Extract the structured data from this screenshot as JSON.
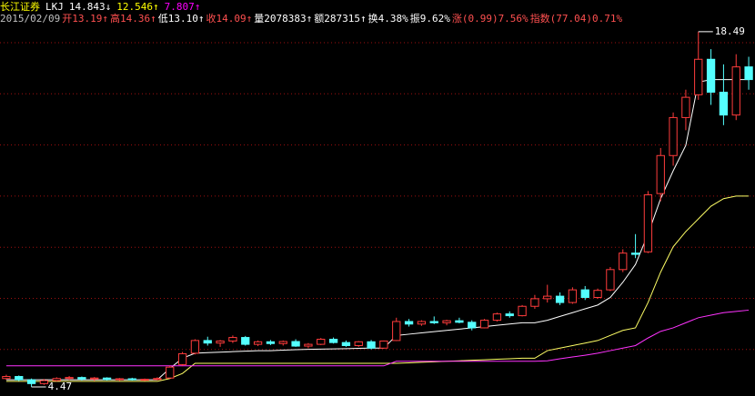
{
  "chart_data": {
    "type": "candlestick",
    "header": {
      "line1": [
        {
          "text": "长江证券",
          "color": "#ffff00"
        },
        {
          "text": "LKJ",
          "color": "#ffffff"
        },
        {
          "text": "14.843↓",
          "color": "#ffffff"
        },
        {
          "text": "12.546↑",
          "color": "#ffff00"
        },
        {
          "text": "7.807↑",
          "color": "#ff00ff"
        }
      ],
      "line2": [
        {
          "text": "2015/02/09",
          "color": "#c0c0c0"
        },
        {
          "text": "开13.19↑",
          "color": "#ff5050"
        },
        {
          "text": "高14.36↑",
          "color": "#ff5050"
        },
        {
          "text": "低13.10↑",
          "color": "#ffffff"
        },
        {
          "text": "收14.09↑",
          "color": "#ff5050"
        },
        {
          "text": "量2078383↑",
          "color": "#ffffff"
        },
        {
          "text": "额287315↑",
          "color": "#ffffff"
        },
        {
          "text": "换4.38%",
          "color": "#ffffff"
        },
        {
          "text": "振9.62%",
          "color": "#ffffff"
        },
        {
          "text": "涨(0.99)7.56%",
          "color": "#ff5050"
        },
        {
          "text": "指数(77.04)0.71%",
          "color": "#ff5050"
        }
      ]
    },
    "ylim": [
      4.11,
      19.74
    ],
    "up_color": "#ff3c3c",
    "down_color": "#54ffff",
    "grid_color": "#a01010",
    "max_label": 18.49,
    "min_label": 4.47,
    "candles": [
      [
        4.8,
        4.95,
        4.75,
        4.88
      ],
      [
        4.88,
        4.92,
        4.7,
        4.75
      ],
      [
        4.75,
        4.8,
        4.47,
        4.6
      ],
      [
        4.6,
        4.78,
        4.55,
        4.72
      ],
      [
        4.72,
        4.85,
        4.68,
        4.8
      ],
      [
        4.8,
        4.9,
        4.74,
        4.84
      ],
      [
        4.84,
        4.88,
        4.72,
        4.78
      ],
      [
        4.78,
        4.86,
        4.7,
        4.82
      ],
      [
        4.82,
        4.85,
        4.72,
        4.76
      ],
      [
        4.76,
        4.82,
        4.7,
        4.79
      ],
      [
        4.79,
        4.83,
        4.72,
        4.75
      ],
      [
        4.75,
        4.8,
        4.7,
        4.77
      ],
      [
        4.77,
        4.85,
        4.73,
        4.8
      ],
      [
        4.82,
        5.3,
        4.8,
        5.25
      ],
      [
        5.35,
        5.85,
        5.3,
        5.78
      ],
      [
        5.8,
        6.35,
        5.75,
        6.3
      ],
      [
        6.3,
        6.45,
        6.1,
        6.2
      ],
      [
        6.2,
        6.32,
        6.05,
        6.28
      ],
      [
        6.28,
        6.5,
        6.2,
        6.42
      ],
      [
        6.42,
        6.48,
        6.1,
        6.15
      ],
      [
        6.15,
        6.3,
        6.08,
        6.25
      ],
      [
        6.25,
        6.32,
        6.12,
        6.18
      ],
      [
        6.18,
        6.3,
        6.1,
        6.26
      ],
      [
        6.26,
        6.35,
        6.05,
        6.08
      ],
      [
        6.08,
        6.2,
        6.0,
        6.15
      ],
      [
        6.15,
        6.4,
        6.12,
        6.35
      ],
      [
        6.35,
        6.42,
        6.18,
        6.22
      ],
      [
        6.22,
        6.3,
        6.05,
        6.1
      ],
      [
        6.1,
        6.28,
        6.05,
        6.25
      ],
      [
        6.25,
        6.32,
        5.95,
        6.0
      ],
      [
        6.0,
        6.3,
        5.98,
        6.28
      ],
      [
        6.3,
        7.2,
        6.28,
        7.05
      ],
      [
        7.05,
        7.15,
        6.85,
        6.95
      ],
      [
        6.95,
        7.1,
        6.88,
        7.05
      ],
      [
        7.05,
        7.25,
        6.95,
        7.0
      ],
      [
        7.0,
        7.12,
        6.9,
        7.08
      ],
      [
        7.08,
        7.2,
        6.98,
        7.02
      ],
      [
        7.02,
        7.1,
        6.7,
        6.8
      ],
      [
        6.8,
        7.15,
        6.78,
        7.1
      ],
      [
        7.1,
        7.4,
        7.05,
        7.35
      ],
      [
        7.35,
        7.45,
        7.2,
        7.28
      ],
      [
        7.28,
        7.7,
        7.25,
        7.65
      ],
      [
        7.65,
        8.1,
        7.55,
        7.95
      ],
      [
        7.95,
        8.5,
        7.8,
        8.05
      ],
      [
        8.05,
        8.2,
        7.7,
        7.8
      ],
      [
        7.8,
        8.4,
        7.75,
        8.3
      ],
      [
        8.3,
        8.45,
        7.9,
        8.0
      ],
      [
        8.0,
        8.35,
        7.95,
        8.28
      ],
      [
        8.3,
        9.2,
        8.25,
        9.1
      ],
      [
        9.1,
        9.9,
        9.0,
        9.75
      ],
      [
        9.75,
        10.5,
        9.55,
        9.7
      ],
      [
        9.8,
        12.2,
        9.75,
        12.05
      ],
      [
        12.1,
        13.9,
        11.8,
        13.6
      ],
      [
        13.6,
        15.3,
        13.2,
        15.1
      ],
      [
        15.1,
        16.2,
        14.6,
        15.9
      ],
      [
        16.0,
        18.49,
        15.8,
        17.4
      ],
      [
        17.4,
        17.8,
        15.6,
        16.1
      ],
      [
        16.1,
        17.2,
        14.8,
        15.2
      ],
      [
        15.2,
        17.6,
        15.0,
        17.1
      ],
      [
        17.1,
        17.5,
        16.2,
        16.6
      ]
    ],
    "lines": [
      {
        "color": "#ffffff",
        "values": [
          4.75,
          4.75,
          4.75,
          4.75,
          4.75,
          4.75,
          4.75,
          4.75,
          4.75,
          4.75,
          4.75,
          4.75,
          4.75,
          5.2,
          5.6,
          5.8,
          5.82,
          5.84,
          5.86,
          5.88,
          5.9,
          5.9,
          5.92,
          5.94,
          5.95,
          5.96,
          5.97,
          5.98,
          5.99,
          6.0,
          6.0,
          6.5,
          6.55,
          6.6,
          6.65,
          6.7,
          6.75,
          6.8,
          6.85,
          6.9,
          6.95,
          7.0,
          7.0,
          7.1,
          7.25,
          7.4,
          7.55,
          7.7,
          8.0,
          8.6,
          9.3,
          10.5,
          11.9,
          13.0,
          14.0,
          16.5,
          16.6,
          16.6,
          16.6,
          16.6
        ]
      },
      {
        "color": "#ffff66",
        "values": [
          4.69,
          4.69,
          4.69,
          4.69,
          4.69,
          4.69,
          4.69,
          4.69,
          4.69,
          4.69,
          4.69,
          4.69,
          4.69,
          4.8,
          5.0,
          5.4,
          5.4,
          5.4,
          5.4,
          5.4,
          5.4,
          5.4,
          5.4,
          5.4,
          5.4,
          5.4,
          5.4,
          5.4,
          5.4,
          5.4,
          5.4,
          5.4,
          5.42,
          5.44,
          5.46,
          5.48,
          5.5,
          5.52,
          5.54,
          5.56,
          5.58,
          5.6,
          5.6,
          5.9,
          6.0,
          6.1,
          6.2,
          6.3,
          6.5,
          6.7,
          6.8,
          7.8,
          9.0,
          10.0,
          10.6,
          11.1,
          11.6,
          11.9,
          12.0,
          12.0
        ]
      },
      {
        "color": "#ff33ff",
        "values": [
          5.3,
          5.3,
          5.3,
          5.3,
          5.3,
          5.3,
          5.3,
          5.3,
          5.3,
          5.3,
          5.3,
          5.3,
          5.3,
          5.3,
          5.3,
          5.3,
          5.3,
          5.3,
          5.3,
          5.3,
          5.3,
          5.3,
          5.3,
          5.3,
          5.3,
          5.3,
          5.3,
          5.3,
          5.3,
          5.3,
          5.3,
          5.48,
          5.48,
          5.48,
          5.48,
          5.48,
          5.48,
          5.48,
          5.48,
          5.48,
          5.48,
          5.48,
          5.48,
          5.5,
          5.58,
          5.65,
          5.72,
          5.8,
          5.9,
          6.0,
          6.1,
          6.4,
          6.66,
          6.8,
          7.0,
          7.2,
          7.3,
          7.4,
          7.45,
          7.5
        ]
      }
    ]
  }
}
